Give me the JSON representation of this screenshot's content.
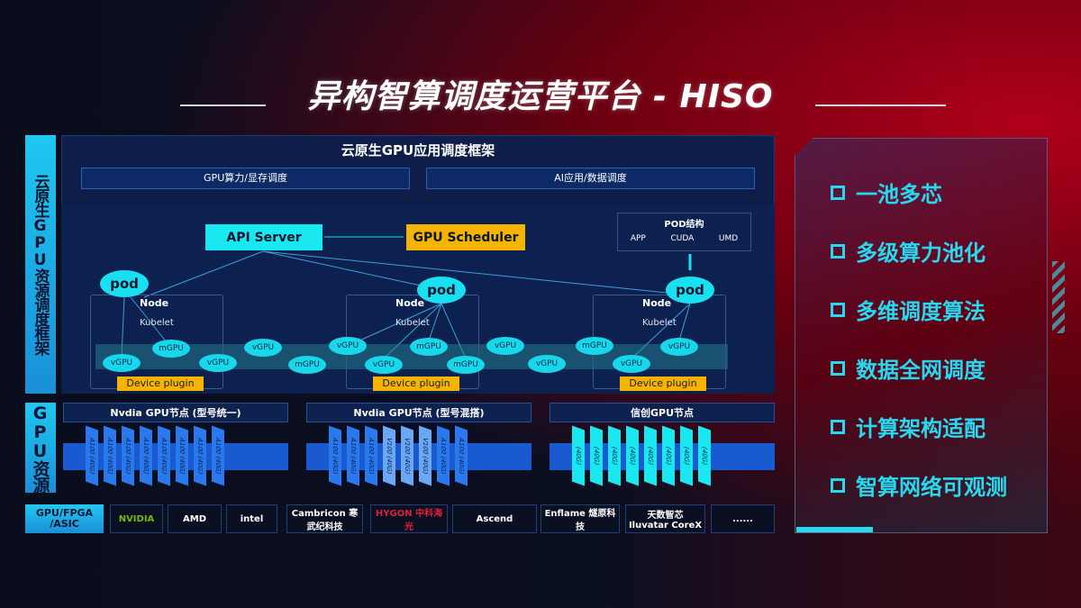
{
  "title": "异构智算调度运营平台 - HISO",
  "left_labels": {
    "framework": "云原生GPU资源调度框架",
    "resources": "GPU资源"
  },
  "main": {
    "header": "云原生GPU应用调度框架",
    "bars": [
      "GPU算力/显存调度",
      "AI应用/数据调度"
    ],
    "api_server": "API Server",
    "gpu_scheduler": "GPU Scheduler",
    "pod_structure": {
      "title": "POD结构",
      "items": [
        "APP",
        "CUDA",
        "UMD"
      ]
    },
    "pod": "pod",
    "node": "Node",
    "kubelet": "Kubelet",
    "device_plugin": "Device plugin",
    "gpus": [
      "vGPU",
      "mGPU",
      "vGPU",
      "vGPU",
      "mGPU",
      "vGPU",
      "vGPU",
      "mGPU",
      "mGPU",
      "vGPU",
      "vGPU",
      "mGPU",
      "vGPU",
      "vGPU"
    ]
  },
  "gpu_nodes": [
    {
      "title": "Nvdia GPU节点 (型号统一)",
      "chips": [
        "A100 (40G)",
        "A100 (40G)",
        "A100 (40G)",
        "A100 (40G)",
        "A100 (40G)",
        "A100 (40G)",
        "A100 (40G)",
        "A100 (40G)"
      ]
    },
    {
      "title": "Nvdia GPU节点 (型号混搭)",
      "chips": [
        "A100 (40G)",
        "A100 (40G)",
        "A100 (40G)",
        "V100 (40G)",
        "V100 (40G)",
        "V100 (40G)",
        "A100 (40G)",
        "A100 (40G)"
      ]
    },
    {
      "title": "信创GPU节点",
      "chips": [
        "(40G)",
        "(40G)",
        "(40G)",
        "(40G)",
        "(40G)",
        "(40G)",
        "(40G)",
        "(40G)"
      ]
    }
  ],
  "vendors": {
    "label": "GPU/FPGA /ASIC",
    "items": [
      "NVIDIA",
      "AMD",
      "intel",
      "Cambricon 寒武纪科技",
      "HYGON 中科海光",
      "Ascend",
      "Enflame 燧原科技",
      "天数智芯 Iluvatar CoreX",
      "......"
    ]
  },
  "features": [
    "一池多芯",
    "多级算力池化",
    "多维调度算法",
    "数据全网调度",
    "计算架构适配",
    "智算网络可观测"
  ],
  "colors": {
    "cyan": "#19e0f0",
    "orange": "#f5b400",
    "blue": "#1a6ee8"
  }
}
